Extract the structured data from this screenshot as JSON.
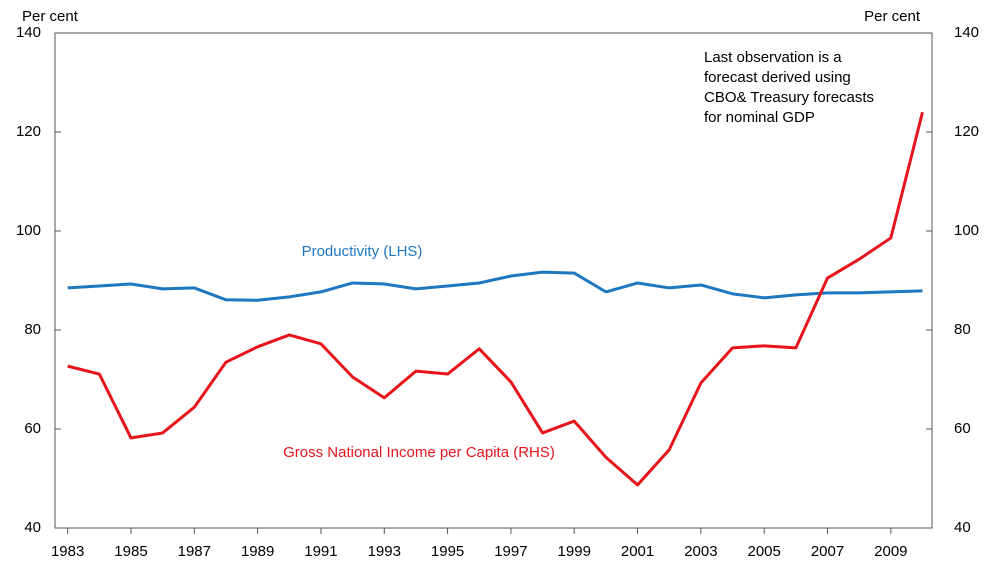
{
  "chart_data": {
    "type": "line",
    "y_label": "Per cent",
    "y2_label": "Per cent",
    "note": [
      "Last observation is a",
      "forecast derived using",
      "CBO& Treasury forecasts",
      "for nominal GDP"
    ],
    "x": [
      1983,
      1984,
      1985,
      1986,
      1987,
      1988,
      1989,
      1990,
      1991,
      1992,
      1993,
      1994,
      1995,
      1996,
      1997,
      1998,
      1999,
      2000,
      2001,
      2002,
      2003,
      2004,
      2005,
      2006,
      2007,
      2008,
      2009,
      2010
    ],
    "xlim": [
      1982.6,
      2010.3
    ],
    "xticks": [
      1983,
      1985,
      1987,
      1989,
      1991,
      1993,
      1995,
      1997,
      1999,
      2001,
      2003,
      2005,
      2007,
      2009
    ],
    "ylim": [
      40,
      140
    ],
    "yticks": [
      40,
      60,
      80,
      100,
      120,
      140
    ],
    "y2lim": [
      40,
      140
    ],
    "y2ticks": [
      40,
      60,
      80,
      100,
      120,
      140
    ],
    "series": [
      {
        "name": "Productivity (LHS)",
        "color": "#1f77c0",
        "values": [
          88.5,
          88.9,
          89.3,
          88.3,
          88.5,
          86.1,
          86.0,
          86.7,
          87.7,
          89.5,
          89.3,
          88.3,
          88.9,
          89.5,
          90.9,
          91.7,
          91.5,
          87.7,
          89.5,
          88.5,
          89.1,
          87.3,
          86.5,
          87.1,
          87.5,
          87.5,
          87.7,
          87.9
        ]
      },
      {
        "name": "Gross National Income per Capita (RHS)",
        "color": "#e8141c",
        "axis": "y2",
        "values": [
          72.7,
          71.1,
          58.2,
          59.2,
          64.4,
          73.5,
          76.6,
          79.0,
          77.2,
          70.5,
          66.3,
          71.7,
          71.1,
          76.2,
          69.5,
          59.2,
          61.6,
          54.3,
          48.7,
          55.8,
          69.3,
          76.4,
          76.8,
          76.4,
          90.5,
          94.3,
          98.6,
          124.0
        ]
      }
    ]
  }
}
